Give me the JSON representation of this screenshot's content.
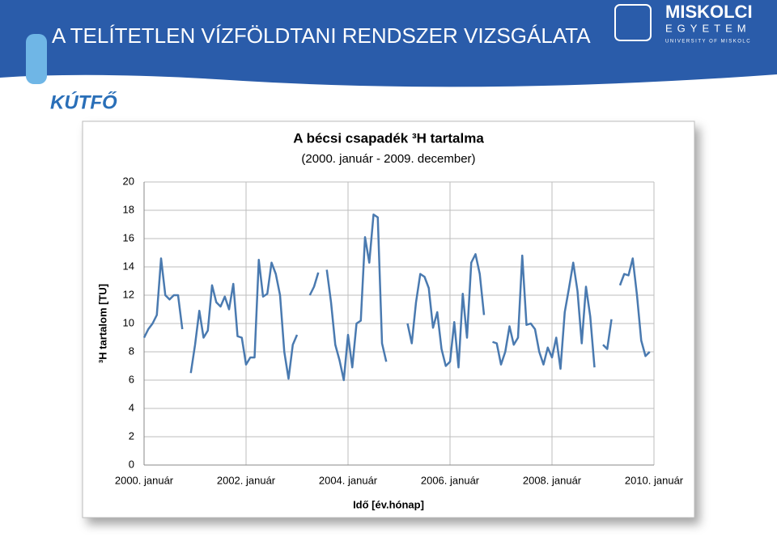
{
  "header": {
    "title": "A TELÍTETLEN VÍZFÖLDTANI RENDSZER VIZSGÁLATA",
    "logo": "KÚTFŐ",
    "university_line1": "MISKOLCI",
    "university_line2": "EGYETEM",
    "university_line3": "UNIVERSITY OF MISKOLC"
  },
  "chart_data": {
    "type": "line",
    "title": "A bécsi csapadék ³H tartalma",
    "subtitle": "(2000. január - 2009. december)",
    "x_label": "Idő [év.hónap]",
    "y_label": "³H tartalom [TU]",
    "x": [
      "2000-01",
      "2000-02",
      "2000-03",
      "2000-04",
      "2000-05",
      "2000-06",
      "2000-07",
      "2000-08",
      "2000-09",
      "2000-10",
      "2000-11",
      "2000-12",
      "2001-01",
      "2001-02",
      "2001-03",
      "2001-04",
      "2001-05",
      "2001-06",
      "2001-07",
      "2001-08",
      "2001-09",
      "2001-10",
      "2001-11",
      "2001-12",
      "2002-01",
      "2002-02",
      "2002-03",
      "2002-04",
      "2002-05",
      "2002-06",
      "2002-07",
      "2002-08",
      "2002-09",
      "2002-10",
      "2002-11",
      "2002-12",
      "2003-01",
      "2003-02",
      "2003-03",
      "2003-04",
      "2003-05",
      "2003-06",
      "2003-07",
      "2003-08",
      "2003-09",
      "2003-10",
      "2003-11",
      "2003-12",
      "2004-01",
      "2004-02",
      "2004-03",
      "2004-04",
      "2004-05",
      "2004-06",
      "2004-07",
      "2004-08",
      "2004-09",
      "2004-10",
      "2004-11",
      "2004-12",
      "2005-01",
      "2005-02",
      "2005-03",
      "2005-04",
      "2005-05",
      "2005-06",
      "2005-07",
      "2005-08",
      "2005-09",
      "2005-10",
      "2005-11",
      "2005-12",
      "2006-01",
      "2006-02",
      "2006-03",
      "2006-04",
      "2006-05",
      "2006-06",
      "2006-07",
      "2006-08",
      "2006-09",
      "2006-10",
      "2006-11",
      "2006-12",
      "2007-01",
      "2007-02",
      "2007-03",
      "2007-04",
      "2007-05",
      "2007-06",
      "2007-07",
      "2007-08",
      "2007-09",
      "2007-10",
      "2007-11",
      "2007-12",
      "2008-01",
      "2008-02",
      "2008-03",
      "2008-04",
      "2008-05",
      "2008-06",
      "2008-07",
      "2008-08",
      "2008-09",
      "2008-10",
      "2008-11",
      "2008-12",
      "2009-01",
      "2009-02",
      "2009-03",
      "2009-04",
      "2009-05",
      "2009-06",
      "2009-07",
      "2009-08",
      "2009-09",
      "2009-10",
      "2009-11",
      "2009-12"
    ],
    "series": [
      {
        "color": "#4a7ab0",
        "values": [
          9.0,
          9.6,
          10.0,
          10.6,
          14.6,
          12.0,
          11.7,
          12.0,
          12.0,
          9.6,
          null,
          6.5,
          8.5,
          10.9,
          9.0,
          9.5,
          12.7,
          11.5,
          11.2,
          11.9,
          11.0,
          12.8,
          9.1,
          9.0,
          7.1,
          7.6,
          7.6,
          14.5,
          11.9,
          12.1,
          14.3,
          13.5,
          12.0,
          8.0,
          6.1,
          8.5,
          9.2,
          null,
          null,
          12.0,
          12.6,
          13.6,
          null,
          13.8,
          11.5,
          8.5,
          7.4,
          6.0,
          9.2,
          6.9,
          10.0,
          10.2,
          16.1,
          14.3,
          17.7,
          17.5,
          8.6,
          7.3,
          null,
          null,
          null,
          null,
          10.0,
          8.6,
          11.5,
          13.5,
          13.3,
          12.5,
          9.7,
          10.8,
          8.2,
          7.0,
          7.3,
          10.1,
          6.9,
          12.1,
          9.0,
          14.3,
          14.9,
          13.5,
          10.6,
          null,
          8.7,
          8.6,
          7.1,
          8.0,
          9.8,
          8.5,
          9.0,
          14.8,
          9.9,
          10.0,
          9.6,
          8.0,
          7.1,
          8.3,
          7.6,
          9.0,
          6.8,
          10.8,
          12.5,
          14.3,
          12.3,
          8.6,
          12.6,
          10.5,
          6.9,
          null,
          8.5,
          8.2,
          10.3,
          null,
          12.7,
          13.5,
          13.4,
          14.6,
          12.0,
          8.8,
          7.7,
          8.0
        ]
      }
    ],
    "xlim": [
      "2000-01",
      "2010-01"
    ],
    "xticks": [
      {
        "value": "2000-01",
        "label": "2000. január"
      },
      {
        "value": "2002-01",
        "label": "2002. január"
      },
      {
        "value": "2004-01",
        "label": "2004. január"
      },
      {
        "value": "2006-01",
        "label": "2006. január"
      },
      {
        "value": "2008-01",
        "label": "2008. január"
      },
      {
        "value": "2010-01",
        "label": "2010. január"
      }
    ],
    "ylim": [
      0,
      20
    ],
    "yticks": [
      0,
      2,
      4,
      6,
      8,
      10,
      12,
      14,
      16,
      18,
      20
    ],
    "grid": true
  }
}
